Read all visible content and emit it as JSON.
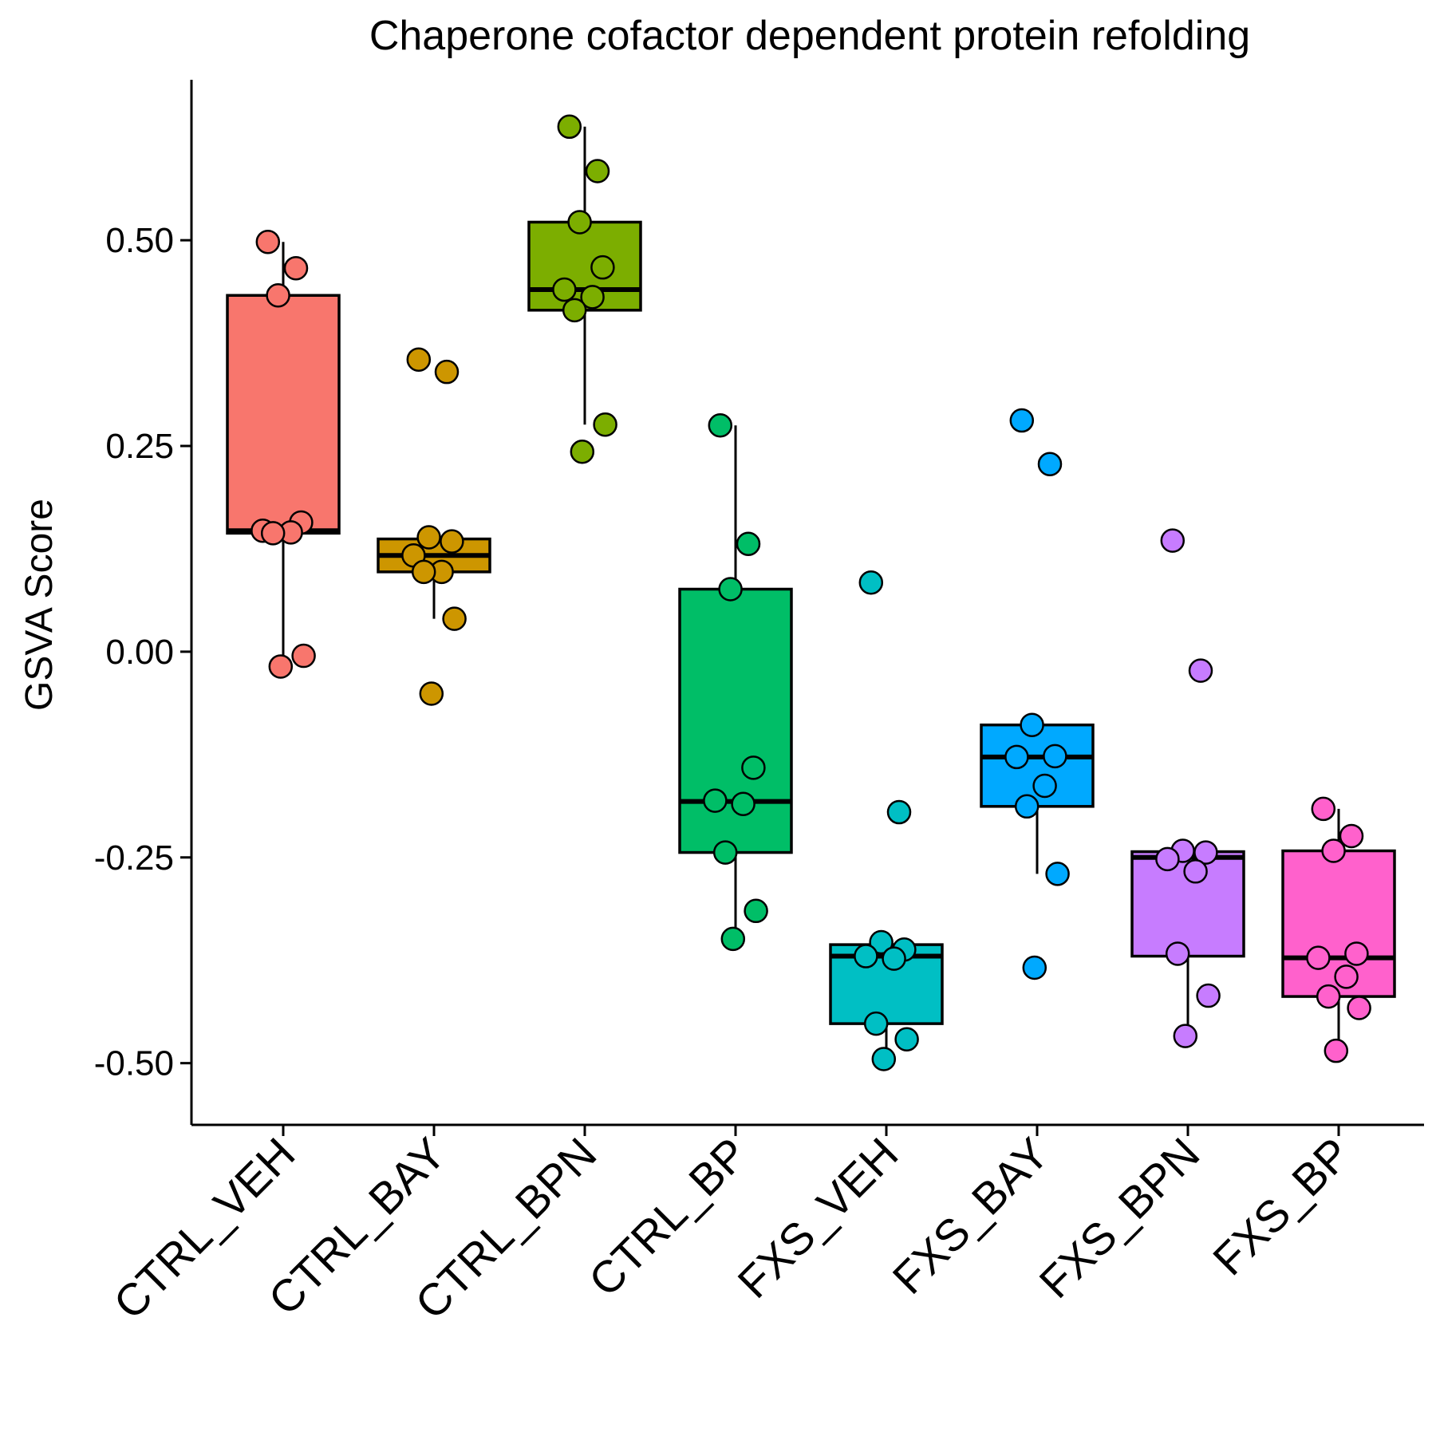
{
  "chart_data": {
    "type": "box",
    "title": "Chaperone cofactor dependent protein refolding",
    "xlabel": "",
    "ylabel": "GSVA Score",
    "ylim": [
      -0.575,
      0.695
    ],
    "yticks": [
      -0.5,
      -0.25,
      0.0,
      0.25,
      0.5
    ],
    "ytick_labels": [
      "-0.50",
      "-0.25",
      "0.00",
      "0.25",
      "0.50"
    ],
    "legend": "none",
    "grid": false,
    "groups": [
      {
        "name": "CTRL_VEH",
        "color": "#F8766D",
        "box": {
          "q1": 0.144,
          "median": 0.147,
          "q3": 0.433,
          "whisker_low": -0.017,
          "whisker_high": 0.498
        },
        "points": [
          0.498,
          0.466,
          0.433,
          0.157,
          0.147,
          0.145,
          0.144,
          -0.005,
          -0.018
        ]
      },
      {
        "name": "CTRL_BAY",
        "color": "#CD9600",
        "box": {
          "q1": 0.097,
          "median": 0.117,
          "q3": 0.137,
          "whisker_low": 0.04,
          "whisker_high": 0.137
        },
        "points": [
          0.355,
          0.34,
          0.139,
          0.134,
          0.117,
          0.097,
          0.097,
          0.04,
          -0.051
        ]
      },
      {
        "name": "CTRL_BPN",
        "color": "#7CAE00",
        "box": {
          "q1": 0.415,
          "median": 0.44,
          "q3": 0.522,
          "whisker_low": 0.276,
          "whisker_high": 0.638
        },
        "points": [
          0.638,
          0.584,
          0.522,
          0.467,
          0.44,
          0.431,
          0.415,
          0.276,
          0.243
        ]
      },
      {
        "name": "CTRL_BP",
        "color": "#00BE67",
        "box": {
          "q1": -0.244,
          "median": -0.182,
          "q3": 0.076,
          "whisker_low": -0.349,
          "whisker_high": 0.275
        },
        "points": [
          0.275,
          0.131,
          0.076,
          -0.141,
          -0.181,
          -0.185,
          -0.244,
          -0.315,
          -0.349
        ]
      },
      {
        "name": "FXS_VEH",
        "color": "#00BFC4",
        "box": {
          "q1": -0.452,
          "median": -0.37,
          "q3": -0.356,
          "whisker_low": -0.495,
          "whisker_high": -0.356
        },
        "points": [
          0.084,
          -0.195,
          -0.353,
          -0.362,
          -0.37,
          -0.373,
          -0.452,
          -0.471,
          -0.495
        ]
      },
      {
        "name": "FXS_BAY",
        "color": "#00A9FF",
        "box": {
          "q1": -0.188,
          "median": -0.128,
          "q3": -0.089,
          "whisker_low": -0.27,
          "whisker_high": -0.089
        },
        "points": [
          0.281,
          0.228,
          -0.089,
          -0.127,
          -0.128,
          -0.163,
          -0.188,
          -0.27,
          -0.384
        ]
      },
      {
        "name": "FXS_BPN",
        "color": "#C77CFF",
        "box": {
          "q1": -0.37,
          "median": -0.25,
          "q3": -0.243,
          "whisker_low": -0.467,
          "whisker_high": -0.243
        },
        "points": [
          0.135,
          -0.023,
          -0.242,
          -0.244,
          -0.252,
          -0.267,
          -0.367,
          -0.418,
          -0.467
        ]
      },
      {
        "name": "FXS_BP",
        "color": "#FF61CC",
        "box": {
          "q1": -0.419,
          "median": -0.372,
          "q3": -0.242,
          "whisker_low": -0.485,
          "whisker_high": -0.191
        },
        "points": [
          -0.191,
          -0.224,
          -0.242,
          -0.367,
          -0.372,
          -0.395,
          -0.419,
          -0.433,
          -0.485
        ]
      }
    ]
  }
}
